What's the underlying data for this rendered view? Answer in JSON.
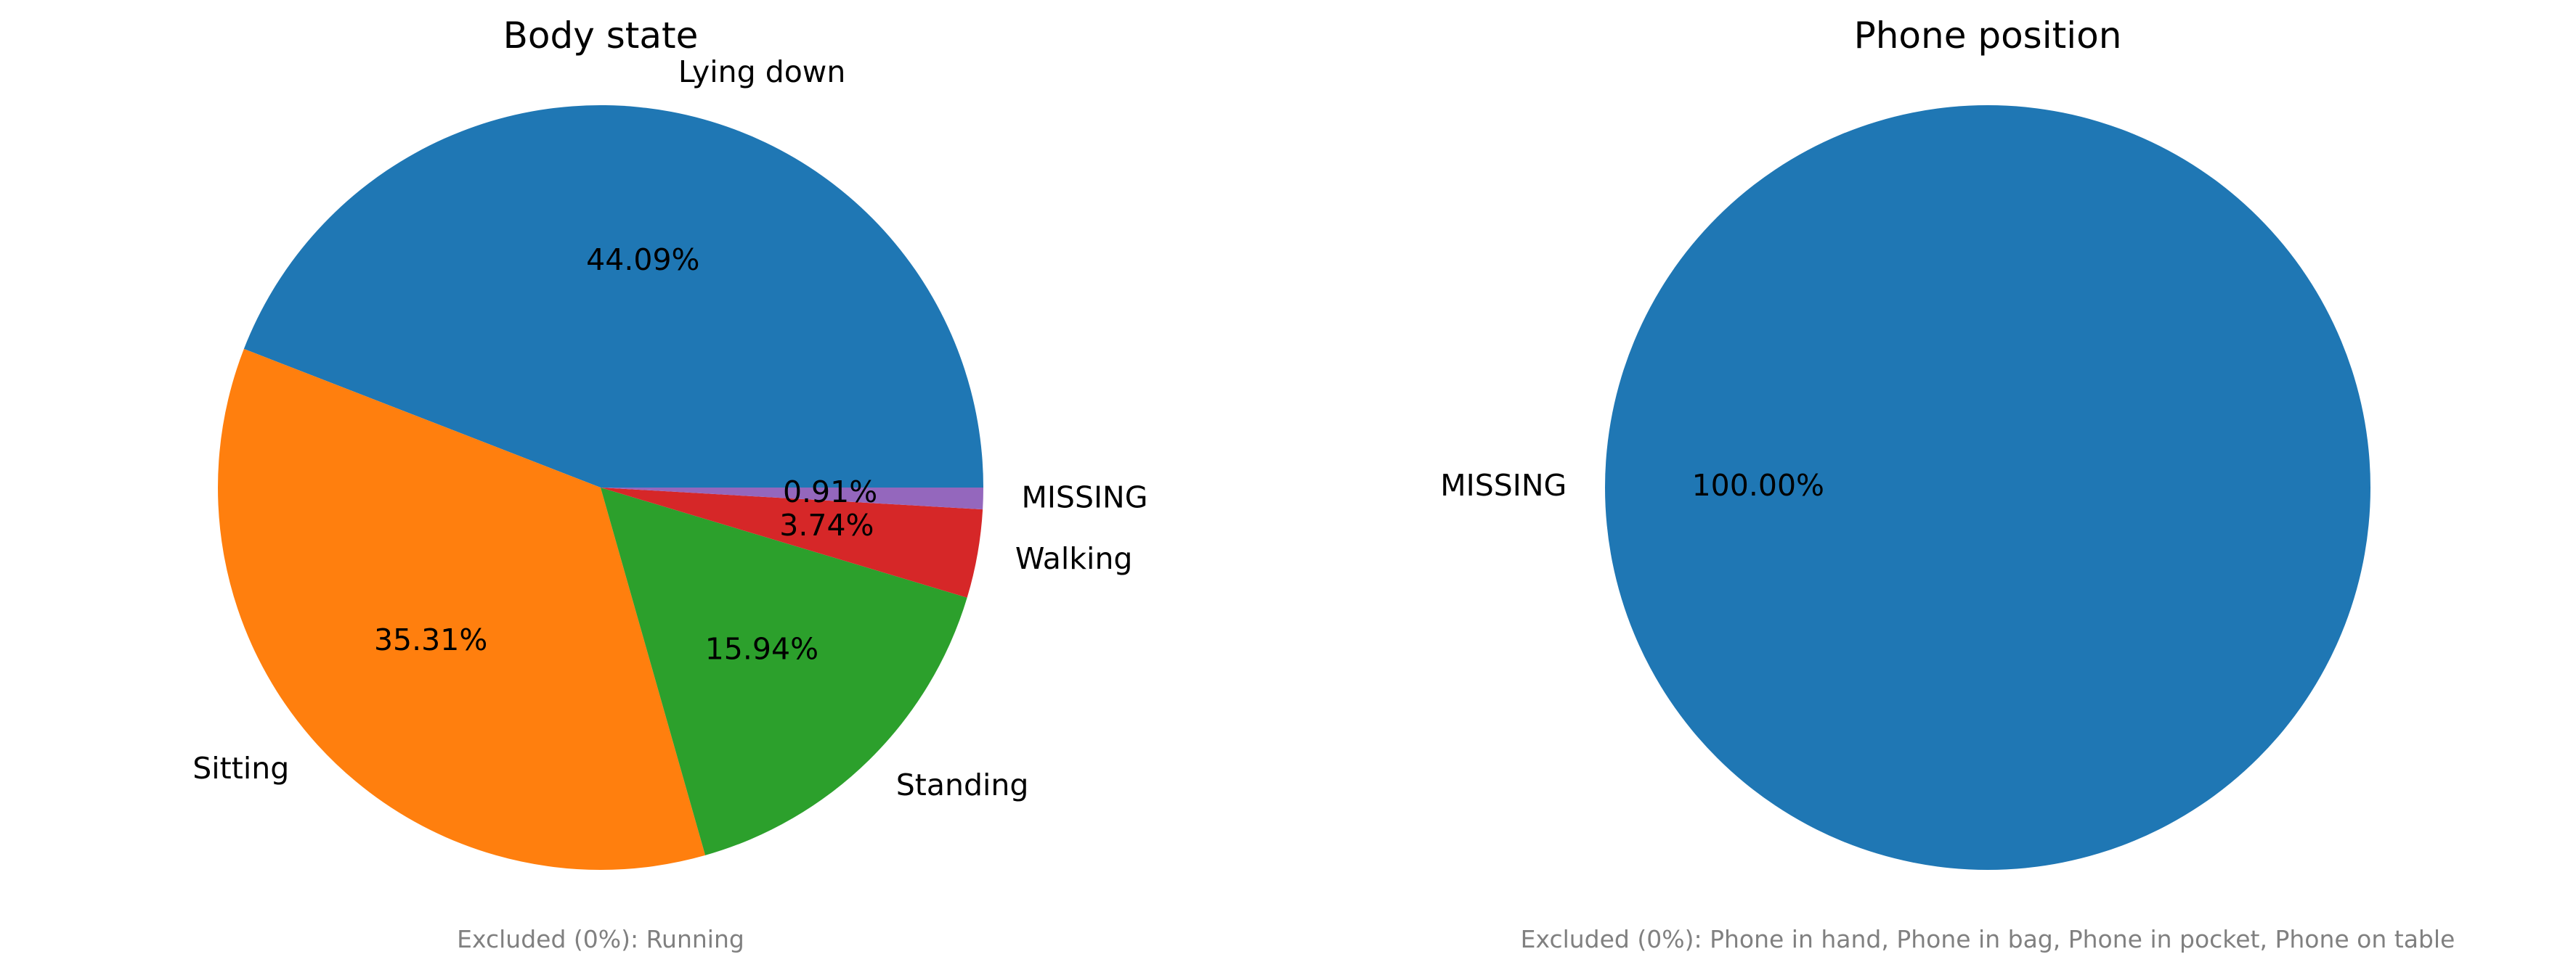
{
  "chart_data": [
    {
      "type": "pie",
      "title": "Body state",
      "labels": [
        "Lying down",
        "Sitting",
        "Standing",
        "Walking",
        "MISSING"
      ],
      "values": [
        44.09,
        35.31,
        15.94,
        3.74,
        0.91
      ],
      "value_labels": [
        "44.09%",
        "35.31%",
        "15.94%",
        "3.74%",
        "0.91%"
      ],
      "colors": [
        "#1f77b4",
        "#ff7f0e",
        "#2ca02c",
        "#d62728",
        "#9467bd"
      ],
      "start_angle_deg": 0,
      "direction": "counterclockwise",
      "note": "Excluded (0%): Running"
    },
    {
      "type": "pie",
      "title": "Phone position",
      "labels": [
        "MISSING"
      ],
      "values": [
        100.0
      ],
      "value_labels": [
        "100.00%"
      ],
      "colors": [
        "#1f77b4"
      ],
      "start_angle_deg": 0,
      "direction": "counterclockwise",
      "note": "Excluded (0%): Phone in hand, Phone in bag, Phone in pocket, Phone on table"
    }
  ]
}
